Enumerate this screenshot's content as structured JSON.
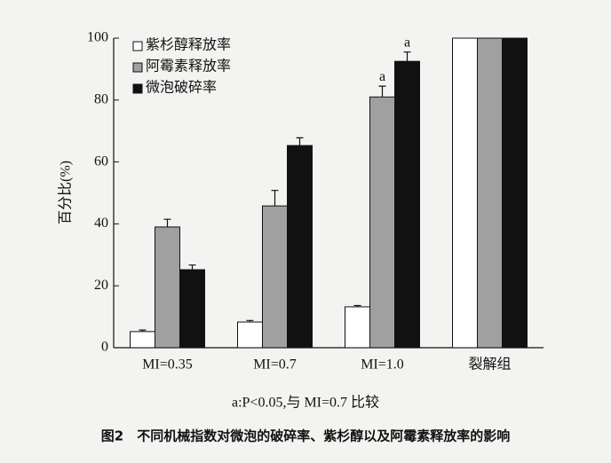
{
  "chart_data": {
    "type": "bar",
    "categories": [
      "MI=0.35",
      "MI=0.7",
      "MI=1.0",
      "裂解组"
    ],
    "series": [
      {
        "name": "紫杉醇释放率",
        "color": "#ffffff",
        "values": [
          5.2,
          8.3,
          13.2,
          100
        ],
        "errors": [
          0.5,
          0.5,
          0.4,
          null
        ],
        "annotations": [
          null,
          null,
          null,
          null
        ]
      },
      {
        "name": "阿霉素释放率",
        "color": "#a0a0a0",
        "values": [
          39,
          45.8,
          81,
          100
        ],
        "errors": [
          2.5,
          5,
          3.5,
          null
        ],
        "annotations": [
          null,
          null,
          "a",
          null
        ]
      },
      {
        "name": "微泡破碎率",
        "color": "#111111",
        "values": [
          25.2,
          65.3,
          92.5,
          100
        ],
        "errors": [
          1.5,
          2.5,
          3,
          null
        ],
        "annotations": [
          null,
          null,
          "a",
          null
        ]
      }
    ],
    "ylabel": "百分比(%)",
    "ylim": [
      0,
      100
    ],
    "yticks": [
      0,
      20,
      40,
      60,
      80,
      100
    ],
    "legend": "upper-left",
    "footnote": "a:P<0.05,与 MI=0.7 比较",
    "caption": "图2　不同机械指数对微泡的破碎率、紫杉醇以及阿霉素释放率的影响"
  }
}
